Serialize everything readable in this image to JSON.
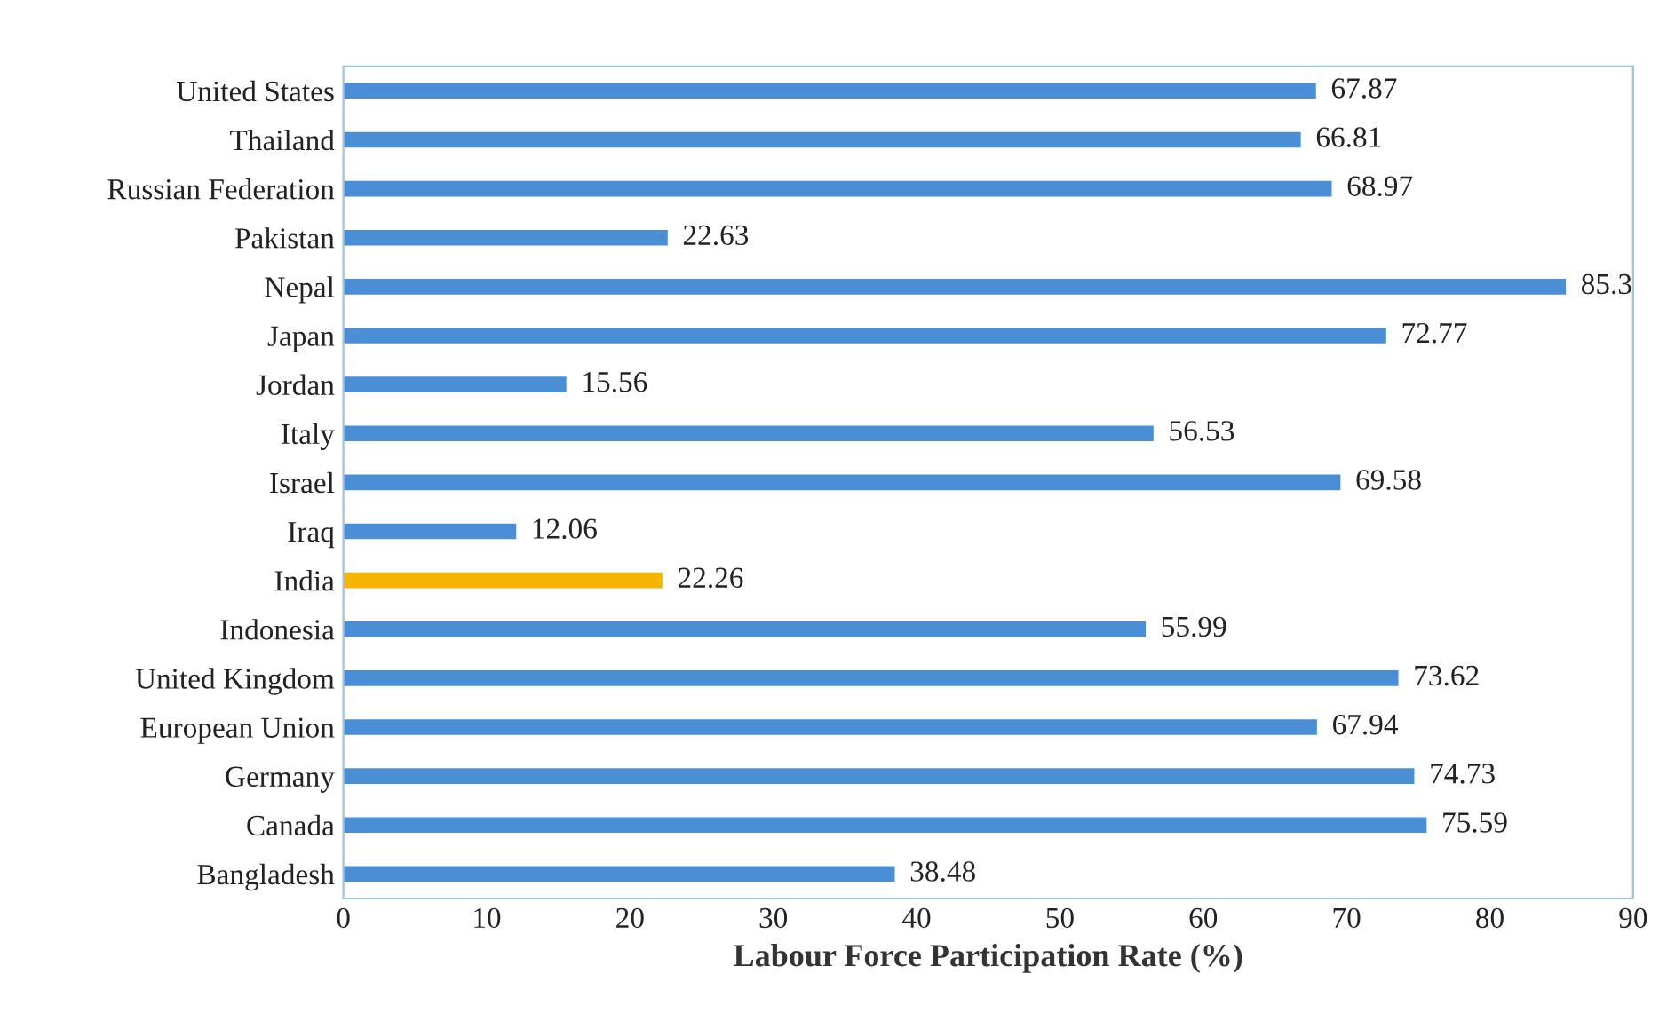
{
  "chart_data": {
    "type": "bar",
    "orientation": "horizontal",
    "xlabel": "Labour Force Participation Rate (%)",
    "categories": [
      "United States",
      "Thailand",
      "Russian Federation",
      "Pakistan",
      "Nepal",
      "Japan",
      "Jordan",
      "Italy",
      "Israel",
      "Iraq",
      "India",
      "Indonesia",
      "United Kingdom",
      "European Union",
      "Germany",
      "Canada",
      "Bangladesh"
    ],
    "values": [
      67.87,
      66.81,
      68.97,
      22.63,
      85.3,
      72.77,
      15.56,
      56.53,
      69.58,
      12.06,
      22.26,
      55.99,
      73.62,
      67.94,
      74.73,
      75.59,
      38.48
    ],
    "colors": [
      "#4a8fd6",
      "#4a8fd6",
      "#4a8fd6",
      "#4a8fd6",
      "#4a8fd6",
      "#4a8fd6",
      "#4a8fd6",
      "#4a8fd6",
      "#4a8fd6",
      "#4a8fd6",
      "#f5b400",
      "#4a8fd6",
      "#4a8fd6",
      "#4a8fd6",
      "#4a8fd6",
      "#4a8fd6",
      "#4a8fd6"
    ],
    "value_labels": [
      "67.87",
      "66.81",
      "68.97",
      "22.63",
      "85.3",
      "72.77",
      "15.56",
      "56.53",
      "69.58",
      "12.06",
      "22.26",
      "55.99",
      "73.62",
      "67.94",
      "74.73",
      "75.59",
      "38.48"
    ],
    "xlim": [
      0,
      90
    ],
    "xticks": [
      0,
      10,
      20,
      30,
      40,
      50,
      60,
      70,
      80,
      90
    ],
    "grid": false
  }
}
